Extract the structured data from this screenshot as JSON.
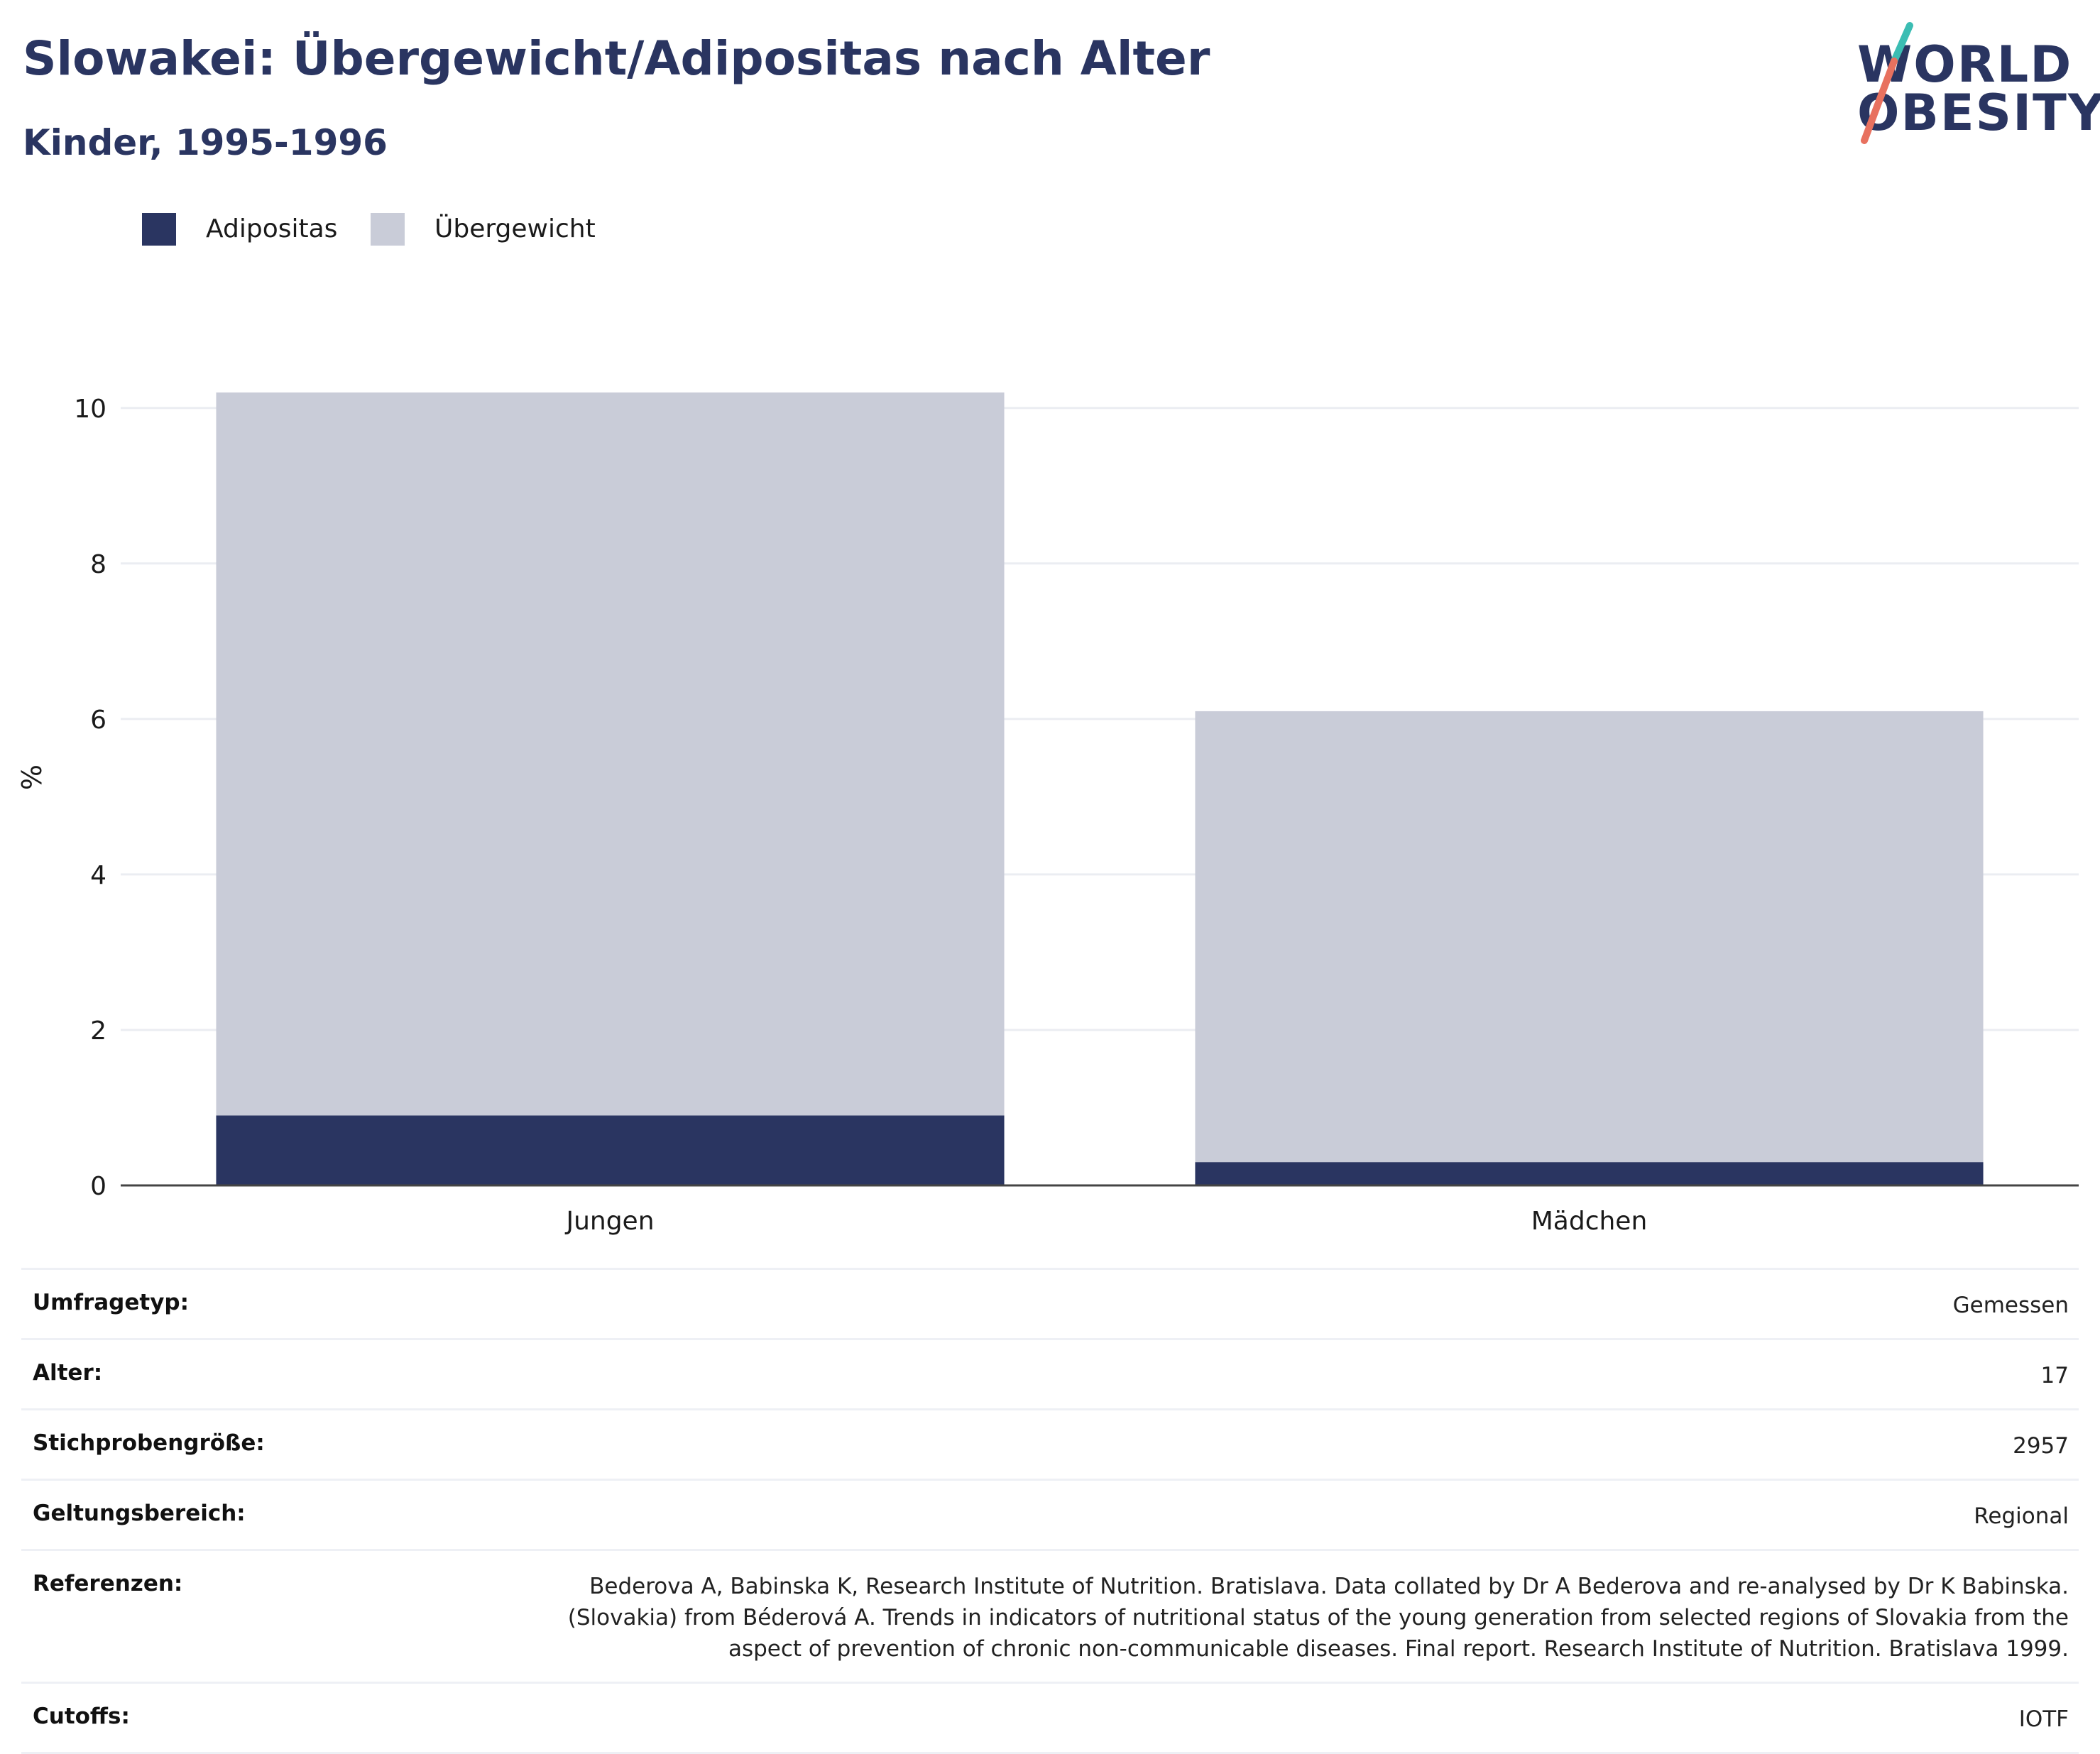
{
  "header": {
    "title": "Slowakei: Übergewicht/Adipositas nach Alter",
    "subtitle": "Kinder, 1995-1996"
  },
  "logo": {
    "line1": "WORLD",
    "line2": "OBESITY",
    "colors": {
      "text": "#2a3561",
      "slash_top": "#3bbdb3",
      "slash_bottom": "#e8715f"
    }
  },
  "legend": [
    {
      "label": "Adipositas",
      "color": "#2a3561"
    },
    {
      "label": "Übergewicht",
      "color": "#c9ccd8"
    }
  ],
  "chart_data": {
    "type": "bar",
    "stacked": true,
    "categories": [
      "Jungen",
      "Mädchen"
    ],
    "series": [
      {
        "name": "Adipositas",
        "values": [
          0.9,
          0.3
        ],
        "color": "#2a3561"
      },
      {
        "name": "Übergewicht",
        "values": [
          9.3,
          5.8
        ],
        "color": "#c9ccd8"
      }
    ],
    "ylabel": "%",
    "ylim": [
      0,
      10.5
    ],
    "yticks": [
      0,
      2,
      4,
      6,
      8,
      10
    ],
    "grid": true,
    "legend_position": "top-left"
  },
  "info": [
    {
      "label": "Umfragetyp:",
      "value": "Gemessen"
    },
    {
      "label": "Alter:",
      "value": "17"
    },
    {
      "label": "Stichprobengröße:",
      "value": "2957"
    },
    {
      "label": "Geltungsbereich:",
      "value": "Regional"
    },
    {
      "label": "Referenzen:",
      "value": "Bederova A, Babinska K, Research Institute of Nutrition. Bratislava. Data collated by Dr A Bederova and re-analysed by Dr K Babinska. (Slovakia) from Béderová A. Trends in indicators of nutritional status of the young generation from selected regions of Slovakia from the aspect of prevention of chronic non-communicable diseases. Final report. Research Institute of Nutrition. Bratislava 1999."
    },
    {
      "label": "Cutoffs:",
      "value": "IOTF"
    }
  ]
}
